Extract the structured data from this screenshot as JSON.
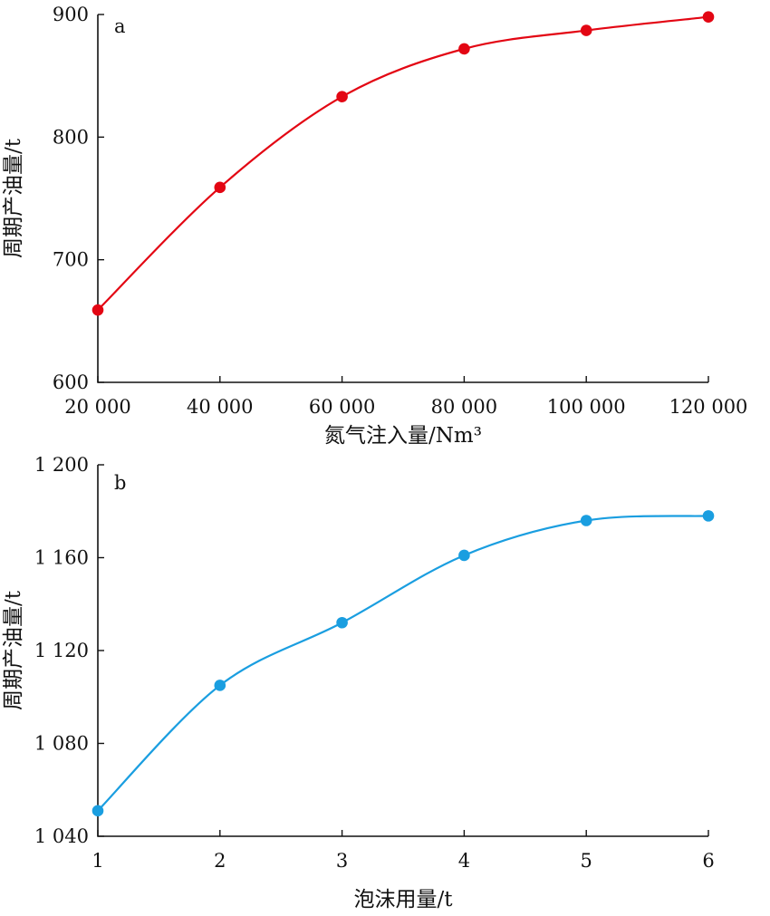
{
  "chart_data": [
    {
      "type": "line",
      "panel_label": "a",
      "x": [
        20000,
        40000,
        60000,
        80000,
        100000,
        120000
      ],
      "x_tick_labels": [
        "20 000",
        "40 000",
        "60 000",
        "80 000",
        "100 000",
        "120 000"
      ],
      "xlabel": "氮气注入量/Nm³",
      "ylabel": "周期产油量/t",
      "xlim": [
        20000,
        120000
      ],
      "ylim": [
        600,
        900
      ],
      "y_ticks": [
        600,
        700,
        800,
        900
      ],
      "y_tick_labels": [
        "600",
        "700",
        "800",
        "900"
      ],
      "series": [
        {
          "values": [
            659,
            759,
            833,
            872,
            887,
            898
          ],
          "color": "#e30613"
        }
      ],
      "grid": false,
      "smooth": true
    },
    {
      "type": "line",
      "panel_label": "b",
      "x": [
        1,
        2,
        3,
        4,
        5,
        6
      ],
      "x_tick_labels": [
        "1",
        "2",
        "3",
        "4",
        "5",
        "6"
      ],
      "xlabel": "泡沫用量/t",
      "ylabel": "周期产油量/t",
      "xlim": [
        1,
        6
      ],
      "ylim": [
        1040,
        1200
      ],
      "y_ticks": [
        1040,
        1080,
        1120,
        1160,
        1200
      ],
      "y_tick_labels": [
        "1 040",
        "1 080",
        "1 120",
        "1 160",
        "1 200"
      ],
      "series": [
        {
          "values": [
            1051,
            1105,
            1132,
            1161,
            1176,
            1178
          ],
          "color": "#1a9ee0"
        }
      ],
      "grid": false,
      "smooth": true
    }
  ]
}
